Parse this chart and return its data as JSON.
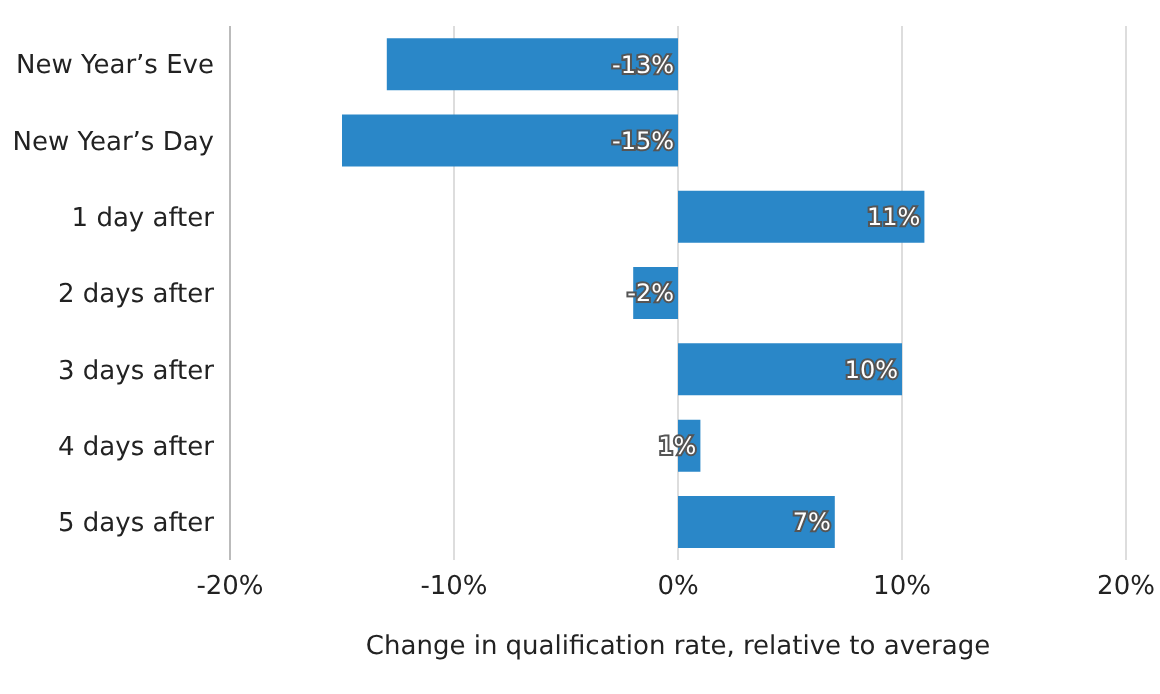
{
  "chart_data": {
    "type": "bar",
    "orientation": "horizontal",
    "categories": [
      "New Year’s Eve",
      "New Year’s Day",
      "1 day after",
      "2 days after",
      "3 days after",
      "4 days after",
      "5 days after"
    ],
    "values": [
      -13,
      -15,
      11,
      -2,
      10,
      1,
      7
    ],
    "value_labels": [
      "-13%",
      "-15%",
      "11%",
      "-2%",
      "10%",
      "1%",
      "7%"
    ],
    "color": "#2a87c8",
    "xlabel": "Change in qualification rate, relative to average",
    "xlim": [
      -20,
      20
    ],
    "xticks": [
      {
        "value": -20,
        "label": "-20%"
      },
      {
        "value": -10,
        "label": "-10%"
      },
      {
        "value": 0,
        "label": "0%"
      },
      {
        "value": 10,
        "label": "10%"
      },
      {
        "value": 20,
        "label": "20%"
      }
    ],
    "grid": "x"
  }
}
